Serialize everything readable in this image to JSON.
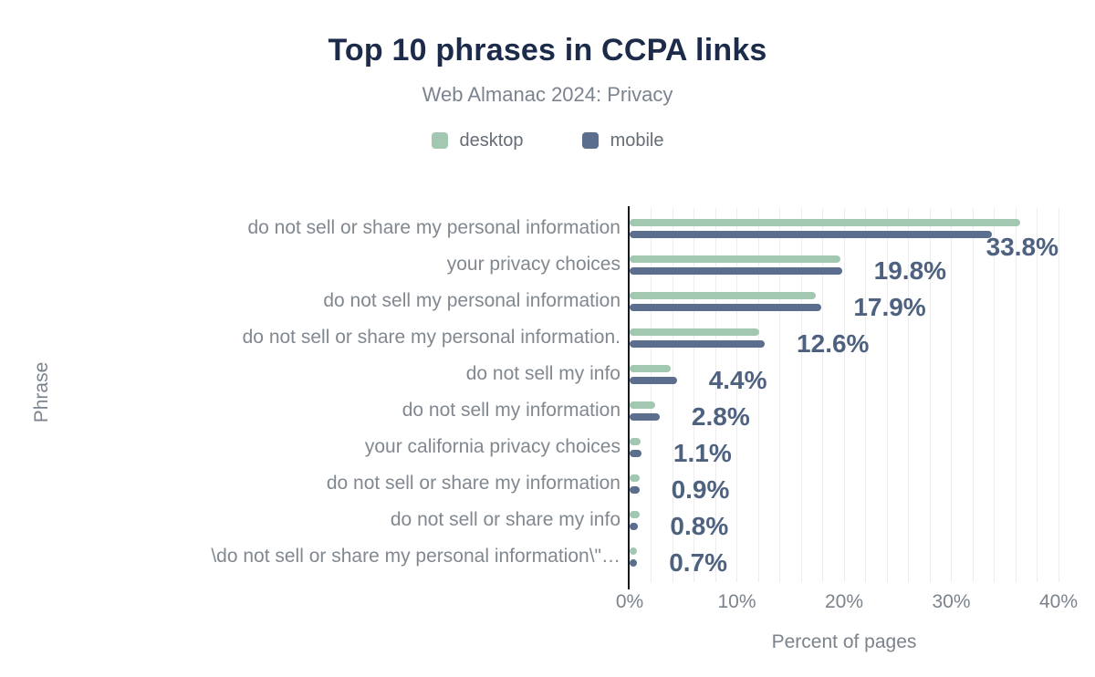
{
  "header": {
    "title": "Top 10 phrases in CCPA links",
    "subtitle": "Web Almanac 2024: Privacy"
  },
  "legend": {
    "items": [
      {
        "label": "desktop",
        "color": "#a3c8b2"
      },
      {
        "label": "mobile",
        "color": "#5b6e8e"
      }
    ]
  },
  "axes": {
    "xlabel": "Percent of pages",
    "ylabel": "Phrase"
  },
  "chart_data": {
    "type": "bar",
    "orientation": "horizontal",
    "title": "Top 10 phrases in CCPA links",
    "subtitle": "Web Almanac 2024: Privacy",
    "xlabel": "Percent of pages",
    "ylabel": "Phrase",
    "xlim": [
      0,
      40
    ],
    "x_ticks": [
      "0%",
      "10%",
      "20%",
      "30%",
      "40%"
    ],
    "grid": {
      "vertical": true,
      "minor_step_pct": 2,
      "color": "#ededed"
    },
    "legend_position": "top",
    "categories": [
      "do not sell or share my personal information",
      "your privacy choices",
      "do not sell my personal information",
      "do not sell or share my personal information.",
      "do not sell my info",
      "do not sell my information",
      "your california privacy choices",
      "do not sell or share my information",
      "do not sell or share my info",
      "\\do not sell or share my personal information\\\"…"
    ],
    "series": [
      {
        "name": "desktop",
        "color": "#a3c8b2",
        "values": [
          36.4,
          19.7,
          17.4,
          12.1,
          3.8,
          2.4,
          1.0,
          0.9,
          0.9,
          0.7
        ]
      },
      {
        "name": "mobile",
        "color": "#5b6e8e",
        "values": [
          33.8,
          19.8,
          17.9,
          12.6,
          4.4,
          2.8,
          1.1,
          0.9,
          0.8,
          0.7
        ]
      }
    ],
    "data_labels": {
      "labeled_series": "mobile",
      "values": [
        "33.8%",
        "19.8%",
        "17.9%",
        "12.6%",
        "4.4%",
        "2.8%",
        "1.1%",
        "0.9%",
        "0.8%",
        "0.7%"
      ],
      "color": "#4e6280"
    }
  },
  "colors": {
    "title": "#1c2b4a",
    "subtitle": "#7b848e",
    "axis_text": "#7b838c",
    "category_text": "#81888f",
    "value_label": "#4e6280",
    "gridline": "#ededed",
    "axis_line": "#15181c",
    "background": "#ffffff"
  }
}
